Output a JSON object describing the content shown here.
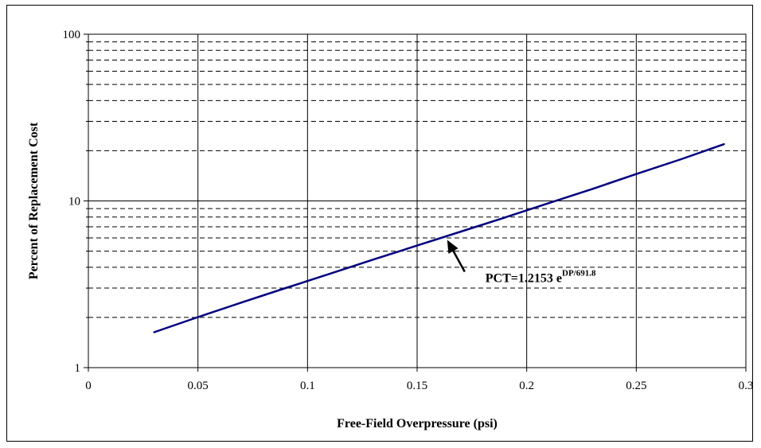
{
  "chart_data": {
    "type": "line",
    "title": "",
    "xlabel": "Free-Field Overpressure (psi)",
    "ylabel": "Percent of Replacement Cost",
    "xlim": [
      0,
      0.3
    ],
    "ylim": [
      1,
      100
    ],
    "y_scale": "log",
    "grid": true,
    "x_ticks": [
      "0",
      "0.05",
      "0.1",
      "0.15",
      "0.2",
      "0.25",
      "0.3"
    ],
    "y_ticks": [
      "1",
      "10",
      "100"
    ],
    "series": [
      {
        "color": "#000080",
        "x": [
          0.03,
          0.05,
          0.07,
          0.09,
          0.11,
          0.13,
          0.15,
          0.17,
          0.19,
          0.21,
          0.23,
          0.25,
          0.27,
          0.29
        ],
        "y": [
          1.63,
          2.01,
          2.46,
          3.0,
          3.65,
          4.45,
          5.4,
          6.55,
          7.95,
          9.7,
          11.8,
          14.5,
          17.7,
          21.9
        ]
      }
    ],
    "annotation": {
      "text": "PCT=1.2153 e",
      "superscript": "DP/691.8",
      "arrow_to": [
        0.163,
        6.1
      ]
    }
  }
}
